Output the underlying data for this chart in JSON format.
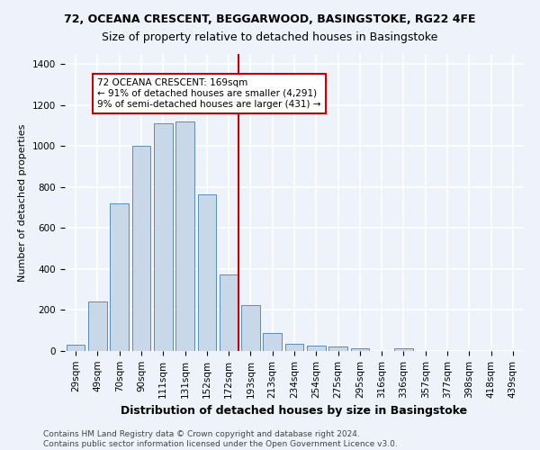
{
  "title_line1": "72, OCEANA CRESCENT, BEGGARWOOD, BASINGSTOKE, RG22 4FE",
  "title_line2": "Size of property relative to detached houses in Basingstoke",
  "xlabel": "Distribution of detached houses by size in Basingstoke",
  "ylabel": "Number of detached properties",
  "categories": [
    "29sqm",
    "49sqm",
    "70sqm",
    "90sqm",
    "111sqm",
    "131sqm",
    "152sqm",
    "172sqm",
    "193sqm",
    "213sqm",
    "234sqm",
    "254sqm",
    "275sqm",
    "295sqm",
    "316sqm",
    "336sqm",
    "357sqm",
    "377sqm",
    "398sqm",
    "418sqm",
    "439sqm"
  ],
  "bar_heights": [
    32,
    240,
    720,
    1000,
    1110,
    1120,
    765,
    375,
    225,
    90,
    35,
    27,
    22,
    15,
    0,
    15,
    0,
    0,
    0,
    0,
    0
  ],
  "bar_color": "#c8d8e8",
  "bar_edge_color": "#5b8db8",
  "vline_color": "#cc0000",
  "vline_index": 7,
  "annotation_text": "72 OCEANA CRESCENT: 169sqm\n← 91% of detached houses are smaller (4,291)\n9% of semi-detached houses are larger (431) →",
  "annotation_box_color": "white",
  "annotation_box_edge": "#cc0000",
  "ylim": [
    0,
    1450
  ],
  "yticks": [
    0,
    200,
    400,
    600,
    800,
    1000,
    1200,
    1400
  ],
  "footer_line1": "Contains HM Land Registry data © Crown copyright and database right 2024.",
  "footer_line2": "Contains public sector information licensed under the Open Government Licence v3.0.",
  "bg_color": "#eef2fa",
  "grid_color": "white",
  "title_fontsize": 9,
  "xlabel_fontsize": 9,
  "ylabel_fontsize": 8,
  "tick_fontsize": 7.5,
  "footer_fontsize": 6.5
}
